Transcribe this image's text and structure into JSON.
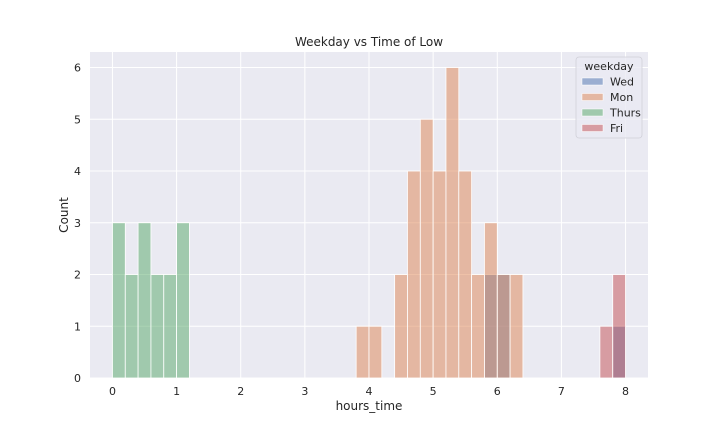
{
  "chart_data": {
    "type": "bar",
    "title": "Weekday vs Time of Low",
    "xlabel": "hours_time",
    "ylabel": "Count",
    "xlim": [
      -0.35,
      8.35
    ],
    "ylim": [
      0,
      6.3
    ],
    "xticks": [
      0,
      1,
      2,
      3,
      4,
      5,
      6,
      7,
      8
    ],
    "yticks": [
      0,
      1,
      2,
      3,
      4,
      5,
      6
    ],
    "bin_width": 0.2,
    "grid": true,
    "legend": {
      "title": "weekday",
      "placement": "top-right"
    },
    "series": [
      {
        "name": "Wed",
        "color": "#4c72b0",
        "bins": [
          {
            "x0": 5.8,
            "x1": 6.0,
            "count": 2
          },
          {
            "x0": 6.0,
            "x1": 6.2,
            "count": 2
          },
          {
            "x0": 7.8,
            "x1": 8.0,
            "count": 1
          }
        ]
      },
      {
        "name": "Mon",
        "color": "#dd8452",
        "bins": [
          {
            "x0": 3.8,
            "x1": 4.0,
            "count": 1
          },
          {
            "x0": 4.0,
            "x1": 4.2,
            "count": 1
          },
          {
            "x0": 4.4,
            "x1": 4.6,
            "count": 2
          },
          {
            "x0": 4.6,
            "x1": 4.8,
            "count": 4
          },
          {
            "x0": 4.8,
            "x1": 5.0,
            "count": 5
          },
          {
            "x0": 5.0,
            "x1": 5.2,
            "count": 4
          },
          {
            "x0": 5.2,
            "x1": 5.4,
            "count": 6
          },
          {
            "x0": 5.4,
            "x1": 5.6,
            "count": 4
          },
          {
            "x0": 5.6,
            "x1": 5.8,
            "count": 2
          },
          {
            "x0": 5.8,
            "x1": 6.0,
            "count": 3
          },
          {
            "x0": 6.0,
            "x1": 6.2,
            "count": 2
          },
          {
            "x0": 6.2,
            "x1": 6.4,
            "count": 2
          }
        ]
      },
      {
        "name": "Thurs",
        "color": "#55a868",
        "bins": [
          {
            "x0": 0.0,
            "x1": 0.2,
            "count": 3
          },
          {
            "x0": 0.2,
            "x1": 0.4,
            "count": 2
          },
          {
            "x0": 0.4,
            "x1": 0.6,
            "count": 3
          },
          {
            "x0": 0.6,
            "x1": 0.8,
            "count": 2
          },
          {
            "x0": 0.8,
            "x1": 1.0,
            "count": 2
          },
          {
            "x0": 1.0,
            "x1": 1.2,
            "count": 3
          }
        ]
      },
      {
        "name": "Fri",
        "color": "#c44e52",
        "bins": [
          {
            "x0": 7.6,
            "x1": 7.8,
            "count": 1
          },
          {
            "x0": 7.8,
            "x1": 8.0,
            "count": 2
          }
        ]
      }
    ]
  },
  "colors": {
    "plot_background": "#eaeaf2",
    "grid": "#ffffff",
    "text": "#262626"
  }
}
